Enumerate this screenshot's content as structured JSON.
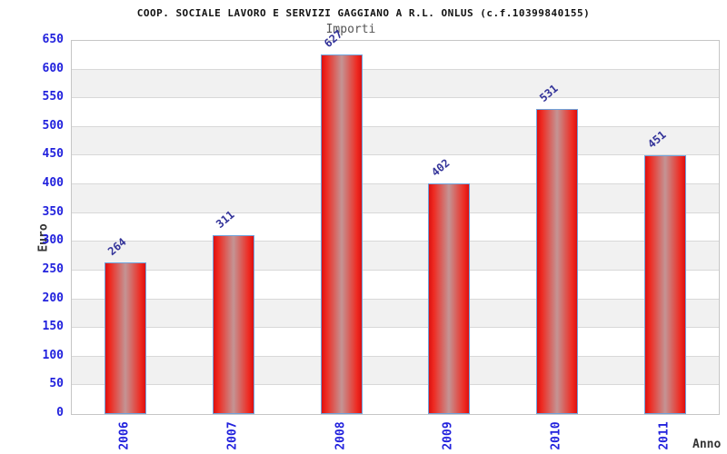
{
  "title": "COOP. SOCIALE LAVORO E SERVIZI GAGGIANO A R.L. ONLUS (c.f.10399840155)",
  "subtitle": "Importi",
  "chart_data": {
    "type": "bar",
    "title": "Importi",
    "categories": [
      "2006",
      "2007",
      "2008",
      "2009",
      "2010",
      "2011"
    ],
    "values": [
      264,
      311,
      627,
      402,
      531,
      451
    ],
    "xlabel": "Anno",
    "ylabel": "Euro",
    "ylim": [
      0,
      650
    ],
    "ytick_step": 50,
    "grid": "horizontal alternating bands",
    "legend": "none",
    "colors": {
      "bar_edge": "#dd1010",
      "bar_center": "#c49494",
      "bar_border": "#6fa3dc",
      "tick_label": "#2222dd",
      "value_label": "#333399",
      "band_gray": "#f1f1f1",
      "gridline": "#d8d8d8",
      "title_text": "#111111",
      "subtitle_text": "#555555",
      "axis_title_text": "#333333"
    }
  }
}
